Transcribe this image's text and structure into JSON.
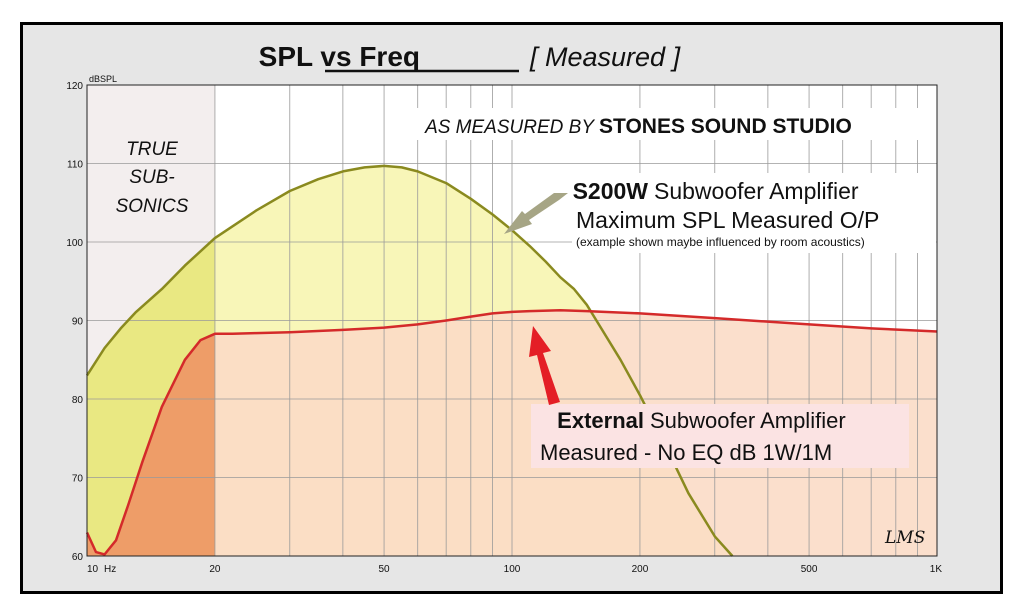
{
  "chart_data": {
    "type": "area",
    "title": "SPL vs Freq",
    "subtitle": "[ Measured ]",
    "ylabel": "dBSPL",
    "xlabel": "Hz",
    "x_scale": "log",
    "xlim": [
      10,
      1000
    ],
    "ylim": [
      60,
      120
    ],
    "x_ticks": [
      {
        "value": 10,
        "label": "10"
      },
      {
        "value": 20,
        "label": "20"
      },
      {
        "value": 50,
        "label": "50"
      },
      {
        "value": 100,
        "label": "100"
      },
      {
        "value": 200,
        "label": "200"
      },
      {
        "value": 500,
        "label": "500"
      },
      {
        "value": 1000,
        "label": "1K"
      }
    ],
    "y_ticks": [
      60,
      70,
      80,
      90,
      100,
      110,
      120
    ],
    "grid": true,
    "region": {
      "label_lines": [
        "TRUE",
        "SUB-",
        "SONICS"
      ],
      "x_range": [
        10,
        20
      ]
    },
    "header_note": {
      "prefix": "AS MEASURED BY",
      "studio": "STONES SOUND STUDIO"
    },
    "series": [
      {
        "name": "S200W",
        "color": "#8a8a1f",
        "fill": "#f8f6b8",
        "x": [
          10,
          11,
          12,
          13,
          15,
          17,
          20,
          25,
          30,
          35,
          40,
          45,
          50,
          55,
          60,
          70,
          80,
          90,
          100,
          110,
          120,
          130,
          140,
          150,
          160,
          180,
          200,
          230,
          260,
          300,
          330
        ],
        "y": [
          83,
          86.5,
          89,
          91,
          94,
          97,
          100.5,
          104,
          106.5,
          108,
          109,
          109.5,
          109.7,
          109.5,
          109,
          107.5,
          105.5,
          103.5,
          101.5,
          99.5,
          97.5,
          95.5,
          94,
          92,
          89.5,
          85,
          80.5,
          74,
          68,
          62.5,
          60
        ]
      },
      {
        "name": "External",
        "color": "#d42a2a",
        "fill": "#fbdcc6",
        "x": [
          10,
          10.5,
          11,
          11.7,
          12.5,
          13.5,
          15,
          17,
          18.5,
          20,
          22,
          25,
          30,
          40,
          50,
          60,
          70,
          80,
          90,
          100,
          110,
          130,
          150,
          200,
          300,
          500,
          700,
          1000
        ],
        "y": [
          63,
          60.5,
          60.2,
          62,
          66.5,
          72,
          79,
          85,
          87.5,
          88.3,
          88.3,
          88.4,
          88.5,
          88.8,
          89.1,
          89.5,
          90,
          90.5,
          90.9,
          91.1,
          91.2,
          91.3,
          91.2,
          90.9,
          90.3,
          89.5,
          89,
          88.6
        ]
      }
    ],
    "annotations": [
      {
        "series": "S200W",
        "bold": "S200W",
        "rest": "Subwoofer Amplifier",
        "line2": "Maximum SPL Measured O/P",
        "note": "(example shown maybe influenced by room acoustics)",
        "arrow_color": "#a6a585"
      },
      {
        "series": "External",
        "bold": "External",
        "rest": "Subwoofer Amplifier",
        "line2": "Measured - No EQ dB 1W/1M",
        "arrow_color": "#e41e26"
      }
    ],
    "signature": "LMS"
  }
}
